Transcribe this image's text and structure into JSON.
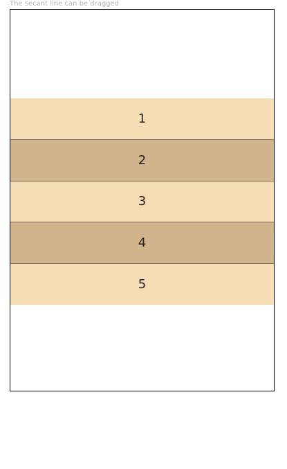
{
  "hint": "The secant line can be dragged",
  "column_split": {
    "items": [
      {
        "label": "1",
        "color": "#f5deb3"
      },
      {
        "label": "2",
        "color": "#d2b48c"
      },
      {
        "label": "3",
        "color": "#f5deb3"
      },
      {
        "label": "4",
        "color": "#d2b48c"
      },
      {
        "label": "5",
        "color": "#f5deb3"
      }
    ],
    "divider_color": "#7a6a58"
  }
}
